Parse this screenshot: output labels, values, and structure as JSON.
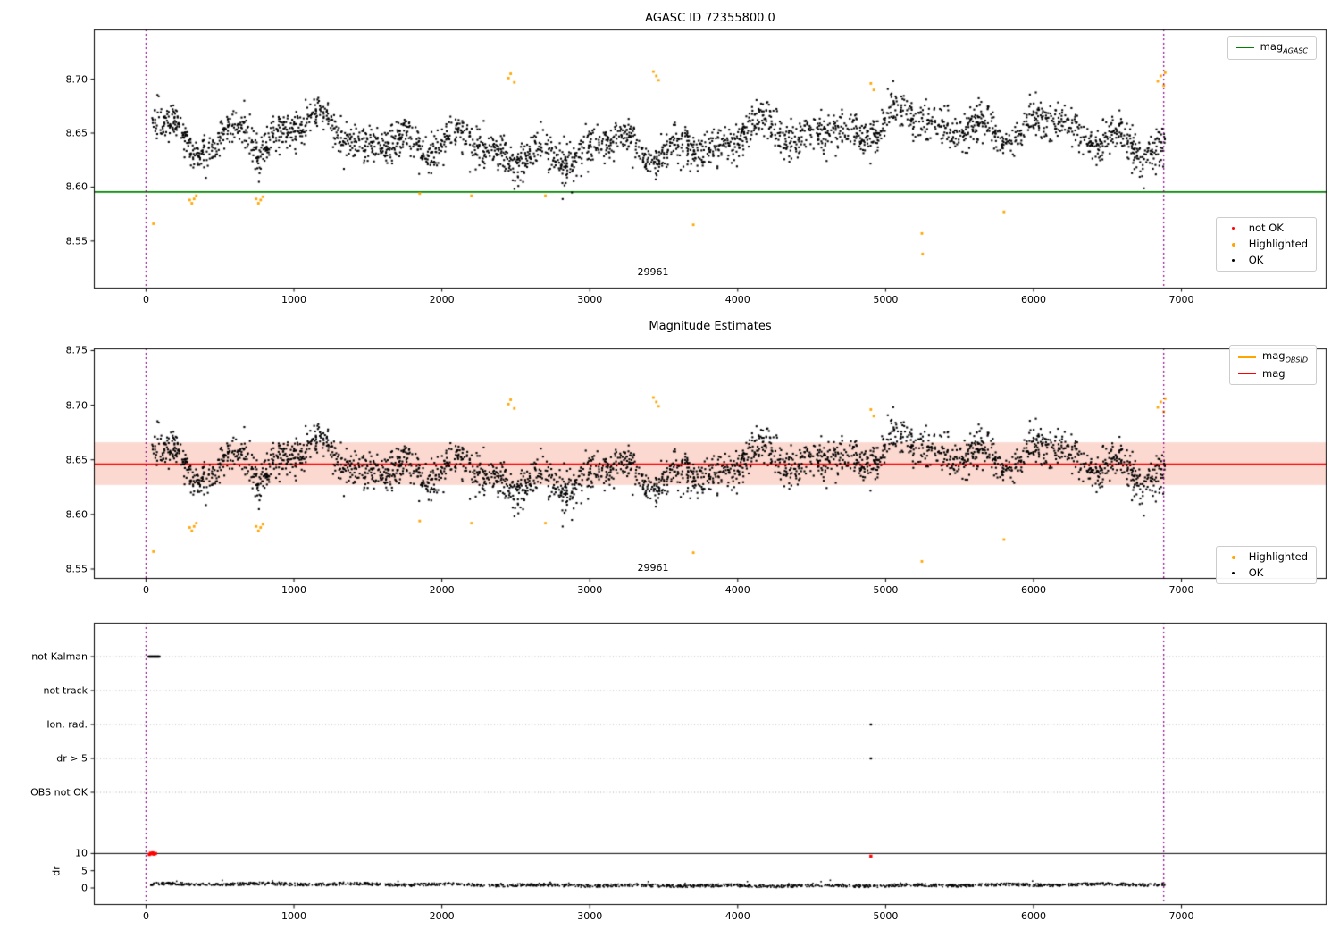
{
  "colors": {
    "ok_points": "#000000",
    "highlighted_points": "#ffa500",
    "not_ok_points": "#ff0000",
    "agasc_line": "#008000",
    "mag_line": "#ff0000",
    "mag_band": "#fbd9d0",
    "obsid_line": "#ffa500",
    "vline": "#8b008b",
    "gridline": "#aaaaaa",
    "threshold_line": "#000000"
  },
  "chart_data": [
    {
      "type": "scatter",
      "title": "AGASC ID 72355800.0",
      "xlim": [
        -353,
        7981
      ],
      "ylim": [
        8.506,
        8.746
      ],
      "xticks": [
        0,
        1000,
        2000,
        3000,
        4000,
        5000,
        6000,
        7000
      ],
      "yticks": [
        "8.55",
        "8.60",
        "8.65",
        "8.70"
      ],
      "agasc_line": {
        "y": 8.5955,
        "color": "#008000",
        "legend_label": "mag",
        "legend_sub": "AGASC"
      },
      "vlines": {
        "x": [
          0,
          6880
        ],
        "color": "#8b008b",
        "style": "dotted"
      },
      "annotation": {
        "text": "29961",
        "x": 3430,
        "y": 8.52
      },
      "legend_points": [
        {
          "label": "not OK",
          "color": "#ff0000"
        },
        {
          "label": "Highlighted",
          "color": "#ffa500"
        },
        {
          "label": "OK",
          "color": "#000000"
        }
      ],
      "ok_series": {
        "name": "OK",
        "color": "#000000",
        "n": 2800,
        "x_range": [
          30,
          6890
        ],
        "mean": 8.6455,
        "noise_sigma": 0.0085,
        "y_range_approx": [
          8.585,
          8.71
        ],
        "dips": [
          {
            "x": 310,
            "depth": 0.03,
            "width": 70
          },
          {
            "x": 770,
            "depth": 0.026,
            "width": 55
          }
        ]
      },
      "highlighted": {
        "name": "Highlighted",
        "color": "#ffa500",
        "points": [
          [
            50,
            8.566
          ],
          [
            295,
            8.588
          ],
          [
            310,
            8.585
          ],
          [
            325,
            8.589
          ],
          [
            340,
            8.592
          ],
          [
            745,
            8.589
          ],
          [
            760,
            8.585
          ],
          [
            775,
            8.588
          ],
          [
            790,
            8.591
          ],
          [
            1850,
            8.594
          ],
          [
            2200,
            8.592
          ],
          [
            2450,
            8.701
          ],
          [
            2465,
            8.705
          ],
          [
            2490,
            8.697
          ],
          [
            2700,
            8.592
          ],
          [
            3430,
            8.707
          ],
          [
            3450,
            8.703
          ],
          [
            3465,
            8.699
          ],
          [
            3700,
            8.565
          ],
          [
            4900,
            8.696
          ],
          [
            4920,
            8.69
          ],
          [
            5245,
            8.557
          ],
          [
            5250,
            8.538
          ],
          [
            5800,
            8.577
          ],
          [
            6840,
            8.698
          ],
          [
            6860,
            8.703
          ],
          [
            6880,
            8.694
          ],
          [
            6890,
            8.706
          ]
        ]
      }
    },
    {
      "type": "scatter",
      "title": "Magnitude Estimates",
      "xlim": [
        -353,
        7981
      ],
      "ylim": [
        8.541,
        8.752
      ],
      "xticks": [
        0,
        1000,
        2000,
        3000,
        4000,
        5000,
        6000,
        7000
      ],
      "yticks": [
        "8.55",
        "8.60",
        "8.65",
        "8.70",
        "8.75"
      ],
      "mag_line": {
        "y": 8.646,
        "color": "#ff0000",
        "legend_label": "mag"
      },
      "mag_band": {
        "y0": 8.627,
        "y1": 8.666,
        "color": "#fbd9d0"
      },
      "obsid_line": {
        "color": "#ffa500",
        "legend_label": "mag",
        "legend_sub": "OBSID"
      },
      "vlines": {
        "x": [
          0,
          6880
        ],
        "color": "#8b008b",
        "style": "dotted"
      },
      "annotation": {
        "text": "29961",
        "x": 3430,
        "y": 8.549
      },
      "legend_points": [
        {
          "label": "Highlighted",
          "color": "#ffa500"
        },
        {
          "label": "OK",
          "color": "#000000"
        }
      ]
    },
    {
      "type": "flags",
      "categories": [
        "not Kalman",
        "not track",
        "Ion. rad.",
        "dr > 5",
        "OBS not OK"
      ],
      "dr_axis": {
        "label": "dr",
        "ticks": [
          0,
          5,
          10
        ],
        "threshold": 10
      },
      "xticks": [
        0,
        1000,
        2000,
        3000,
        4000,
        5000,
        6000,
        7000
      ],
      "vlines": {
        "x": [
          0,
          6880
        ],
        "color": "#8b008b",
        "style": "dotted"
      },
      "flag_points": {
        "not Kalman": [
          18,
          24,
          30,
          36,
          42,
          48,
          54,
          60,
          66,
          72,
          78,
          84,
          90
        ],
        "not track": [],
        "Ion. rad.": [
          4900
        ],
        "dr > 5": [
          4900
        ],
        "OBS not OK": []
      },
      "dr_red_points": [
        [
          22,
          9.7
        ],
        [
          30,
          10.1
        ],
        [
          38,
          9.9
        ],
        [
          46,
          10.2
        ],
        [
          55,
          9.8
        ],
        [
          64,
          10.0
        ],
        [
          4900,
          9.2
        ]
      ],
      "dr_series": {
        "n": 1700,
        "x_range": [
          30,
          6890
        ],
        "typical_value": 0.9,
        "color": "#000000"
      }
    }
  ]
}
